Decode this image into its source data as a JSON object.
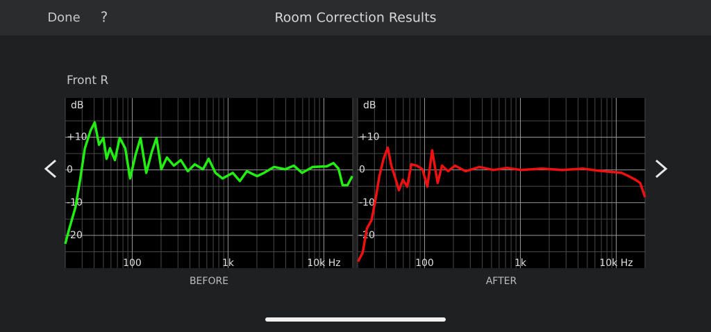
{
  "header": {
    "done": "Done",
    "help": "?",
    "title": "Room Correction Results"
  },
  "speaker": "Front R",
  "chart_data": [
    {
      "type": "line",
      "xlabel": "BEFORE",
      "ylabel": "dB",
      "log_x": true,
      "grid": true,
      "color": "#22ee11",
      "xlim": [
        20,
        20000
      ],
      "ylim": [
        -30,
        22
      ],
      "xticks": [
        100,
        {
          "value": 1000,
          "label": "1k"
        },
        {
          "value": 10000,
          "label": "10k Hz"
        }
      ],
      "minor_xticks": [
        20,
        30,
        40,
        50,
        60,
        70,
        80,
        90,
        200,
        300,
        400,
        500,
        600,
        700,
        800,
        900,
        2000,
        3000,
        4000,
        5000,
        6000,
        7000,
        8000,
        9000,
        20000
      ],
      "yticks": [
        {
          "value": 10,
          "label": "+10"
        },
        0,
        -10,
        -20
      ],
      "minor_yticks": [
        15,
        5,
        -5,
        -15,
        -25
      ],
      "x": [
        20,
        22,
        25.5,
        28.6,
        32,
        36.7,
        40.6,
        45,
        50,
        54,
        58.6,
        65.9,
        74,
        84.6,
        95,
        108,
        122,
        140,
        160,
        179,
        201,
        230,
        272,
        321,
        380,
        449,
        548,
        627,
        739,
        874,
        1120,
        1330,
        1570,
        2010,
        2370,
        3020,
        3940,
        4860,
        5930,
        7650,
        10700,
        12600,
        14200,
        15700,
        17600,
        19800
      ],
      "values": [
        -22.6,
        -18,
        -11.5,
        -3,
        6.6,
        12,
        14.5,
        7.7,
        9.8,
        3.4,
        6.6,
        3,
        9.8,
        6.6,
        -2.6,
        4.5,
        9.8,
        -0.9,
        5.5,
        9.8,
        0.2,
        3.8,
        1.3,
        3,
        -0.4,
        1.7,
        0.2,
        3.4,
        -0.9,
        -2.6,
        -0.9,
        -3.4,
        -0.4,
        -1.9,
        -0.9,
        0.9,
        0.2,
        1.3,
        -0.9,
        0.9,
        1.1,
        2.1,
        0.4,
        -4.7,
        -4.7,
        -1.9
      ]
    },
    {
      "type": "line",
      "xlabel": "AFTER",
      "ylabel": "dB",
      "log_x": true,
      "grid": true,
      "color": "#ee1111",
      "xlim": [
        20,
        20000
      ],
      "ylim": [
        -30,
        22
      ],
      "xticks": [
        100,
        {
          "value": 1000,
          "label": "1k"
        },
        {
          "value": 10000,
          "label": "10k Hz"
        }
      ],
      "minor_xticks": [
        20,
        30,
        40,
        50,
        60,
        70,
        80,
        90,
        200,
        300,
        400,
        500,
        600,
        700,
        800,
        900,
        2000,
        3000,
        4000,
        5000,
        6000,
        7000,
        8000,
        9000,
        20000
      ],
      "yticks": [
        {
          "value": 10,
          "label": "+10"
        },
        0,
        -10,
        -20
      ],
      "minor_yticks": [
        15,
        5,
        -5,
        -15,
        -25
      ],
      "x": [
        20.2,
        22.6,
        25,
        28,
        30.6,
        33.8,
        37.3,
        41.3,
        45,
        48.8,
        54,
        59.5,
        65.9,
        72.8,
        83,
        95,
        107,
        120,
        137,
        152,
        176,
        208,
        268,
        374,
        521,
        728,
        1020,
        1670,
        2760,
        4540,
        6360,
        8900,
        11400,
        13500,
        15900,
        17800,
        20000
      ],
      "values": [
        -28,
        -25.3,
        -17.9,
        -15.3,
        -9.4,
        -1.9,
        3.4,
        6.8,
        1.3,
        -1.9,
        -6.2,
        -3,
        -5.1,
        1.7,
        1.3,
        0.2,
        -5.1,
        6,
        -4,
        1.3,
        -0.4,
        1.3,
        -0.4,
        0.9,
        0,
        0.6,
        0,
        0.4,
        0,
        0.4,
        -0.2,
        -0.6,
        -0.9,
        -1.9,
        -3,
        -4,
        -8.3
      ]
    }
  ]
}
